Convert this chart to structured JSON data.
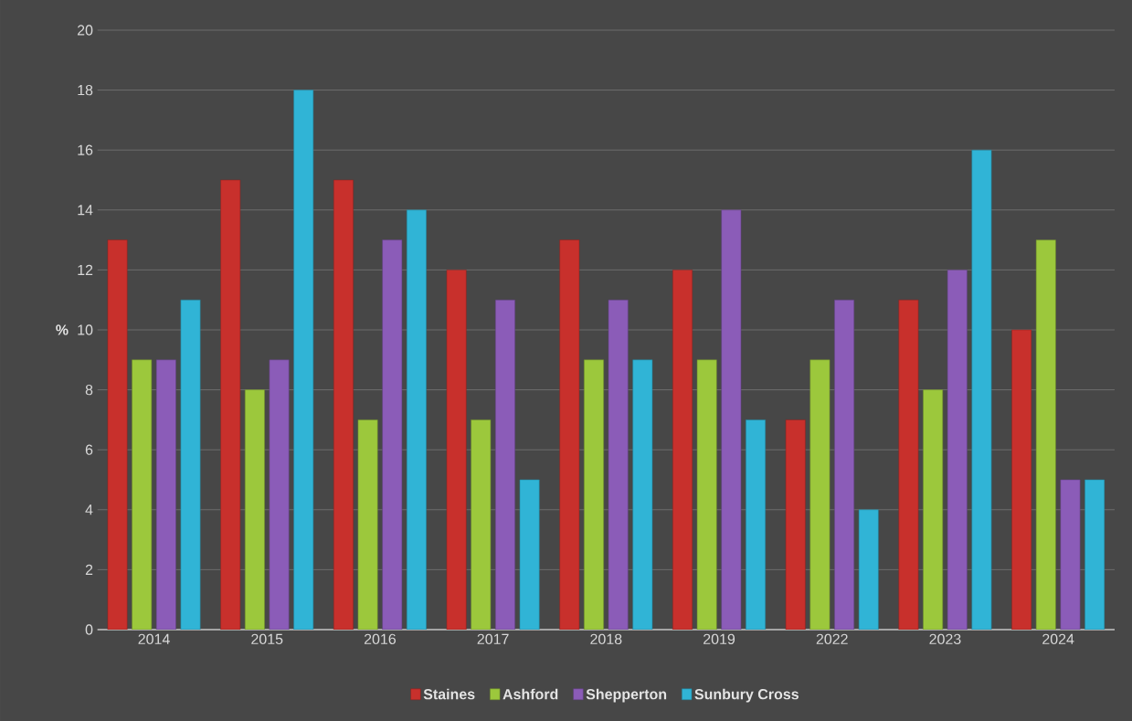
{
  "chart_data": {
    "type": "bar",
    "ylabel": "%",
    "categories": [
      "2014",
      "2015",
      "2016",
      "2017",
      "2018",
      "2019",
      "2022",
      "2023",
      "2024"
    ],
    "series": [
      {
        "name": "Staines",
        "color": "#c8302c",
        "values": [
          13,
          15,
          15,
          12,
          13,
          12,
          7,
          11,
          10
        ]
      },
      {
        "name": "Ashford",
        "color": "#9cc83c",
        "values": [
          9,
          8,
          7,
          7,
          9,
          9,
          9,
          8,
          13
        ]
      },
      {
        "name": "Shepperton",
        "color": "#8b5cb8",
        "values": [
          9,
          9,
          13,
          11,
          11,
          14,
          11,
          12,
          5
        ]
      },
      {
        "name": "Sunbury Cross",
        "color": "#30b4d6",
        "values": [
          11,
          18,
          14,
          5,
          9,
          7,
          4,
          16,
          5
        ]
      }
    ],
    "ylim": [
      0,
      20
    ],
    "yticks": [
      0,
      2,
      4,
      6,
      8,
      10,
      12,
      14,
      16,
      18,
      20
    ],
    "grid": "y",
    "legend": "bottom"
  }
}
